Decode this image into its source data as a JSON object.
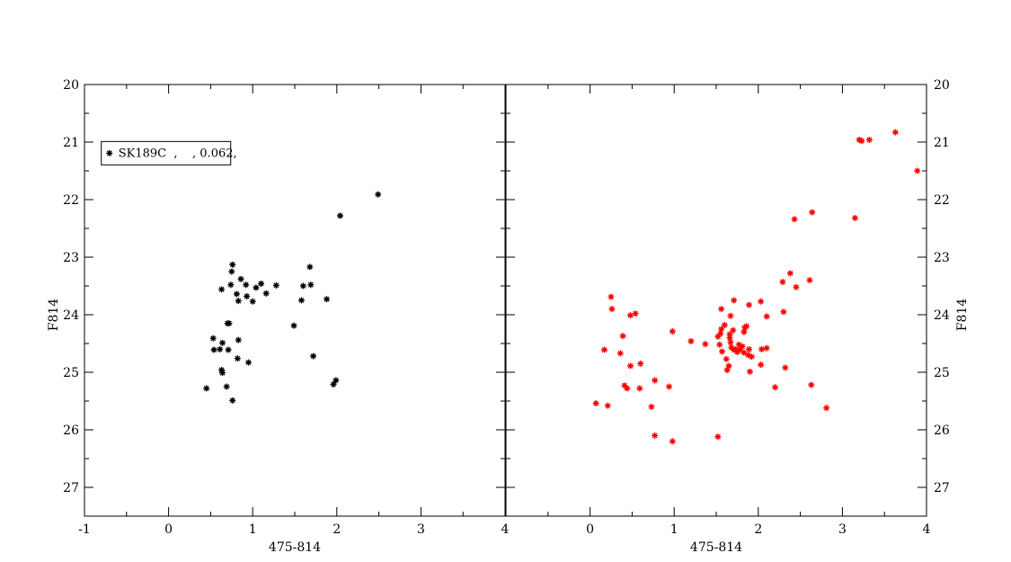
{
  "chart_data": [
    {
      "type": "scatter",
      "title": "",
      "xlabel": "475-814",
      "ylabel": "F814",
      "ylabel_side": "left",
      "xlim": [
        -1,
        4
      ],
      "ylim": [
        27.5,
        20
      ],
      "y_inverted": true,
      "x_ticks": [
        "-1",
        "0",
        "1",
        "2",
        "3",
        "4"
      ],
      "y_ticks": [
        "20",
        "21",
        "22",
        "23",
        "24",
        "25",
        "26",
        "27"
      ],
      "grid": false,
      "legend": {
        "text": "SK189C  ,    , 0.062,",
        "placement": "top-left"
      },
      "series": [
        {
          "name": "SK189C  ,    , 0.062,",
          "color": "#000000",
          "marker": "asterisk",
          "points": [
            [
              2.49,
              21.91
            ],
            [
              2.04,
              22.28
            ],
            [
              0.76,
              23.13
            ],
            [
              1.68,
              23.17
            ],
            [
              0.75,
              23.25
            ],
            [
              1.28,
              23.49
            ],
            [
              1.1,
              23.46
            ],
            [
              0.74,
              23.48
            ],
            [
              1.04,
              23.53
            ],
            [
              1.6,
              23.5
            ],
            [
              1.69,
              23.48
            ],
            [
              0.92,
              23.48
            ],
            [
              0.86,
              23.38
            ],
            [
              0.63,
              23.56
            ],
            [
              0.81,
              23.64
            ],
            [
              1.16,
              23.63
            ],
            [
              0.93,
              23.68
            ],
            [
              1.0,
              23.77
            ],
            [
              0.83,
              23.76
            ],
            [
              1.88,
              23.73
            ],
            [
              1.58,
              23.75
            ],
            [
              1.49,
              24.19
            ],
            [
              0.7,
              24.15
            ],
            [
              0.72,
              24.15
            ],
            [
              0.53,
              24.41
            ],
            [
              0.83,
              24.44
            ],
            [
              0.64,
              24.49
            ],
            [
              0.54,
              24.61
            ],
            [
              0.61,
              24.6
            ],
            [
              0.71,
              24.61
            ],
            [
              1.72,
              24.72
            ],
            [
              0.82,
              24.76
            ],
            [
              0.95,
              24.83
            ],
            [
              0.63,
              24.96
            ],
            [
              0.64,
              25.01
            ],
            [
              1.99,
              25.14
            ],
            [
              1.96,
              25.21
            ],
            [
              0.45,
              25.28
            ],
            [
              0.69,
              25.25
            ],
            [
              0.76,
              25.49
            ]
          ]
        }
      ]
    },
    {
      "type": "scatter",
      "title": "",
      "xlabel": "475-814",
      "ylabel": "F814",
      "ylabel_side": "right",
      "xlim": [
        -1,
        4
      ],
      "ylim": [
        27.5,
        20
      ],
      "y_inverted": true,
      "x_ticks": [
        "0",
        "1",
        "2",
        "3",
        "4"
      ],
      "y_ticks": [
        "20",
        "21",
        "22",
        "23",
        "24",
        "25",
        "26",
        "27"
      ],
      "grid": false,
      "series": [
        {
          "name": "",
          "color": "#ff0000",
          "marker": "asterisk",
          "points": [
            [
              3.63,
              20.83
            ],
            [
              3.2,
              20.96
            ],
            [
              3.23,
              20.98
            ],
            [
              3.32,
              20.96
            ],
            [
              3.89,
              21.5
            ],
            [
              2.64,
              22.22
            ],
            [
              2.43,
              22.34
            ],
            [
              3.15,
              22.32
            ],
            [
              2.38,
              23.28
            ],
            [
              2.29,
              23.43
            ],
            [
              2.45,
              23.52
            ],
            [
              2.61,
              23.4
            ],
            [
              0.25,
              23.69
            ],
            [
              1.71,
              23.75
            ],
            [
              2.03,
              23.77
            ],
            [
              1.89,
              23.83
            ],
            [
              1.56,
              23.9
            ],
            [
              0.26,
              23.9
            ],
            [
              2.3,
              23.95
            ],
            [
              0.54,
              23.98
            ],
            [
              0.48,
              24.01
            ],
            [
              1.67,
              24.02
            ],
            [
              2.1,
              24.03
            ],
            [
              1.6,
              24.18
            ],
            [
              1.84,
              24.22
            ],
            [
              1.86,
              24.2
            ],
            [
              1.56,
              24.25
            ],
            [
              1.7,
              24.27
            ],
            [
              0.98,
              24.29
            ],
            [
              1.55,
              24.33
            ],
            [
              1.83,
              24.3
            ],
            [
              1.66,
              24.34
            ],
            [
              1.66,
              24.4
            ],
            [
              0.39,
              24.37
            ],
            [
              1.52,
              24.38
            ],
            [
              1.2,
              24.46
            ],
            [
              1.67,
              24.48
            ],
            [
              1.37,
              24.51
            ],
            [
              1.54,
              24.52
            ],
            [
              1.77,
              24.52
            ],
            [
              1.81,
              24.55
            ],
            [
              1.68,
              24.57
            ],
            [
              1.73,
              24.6
            ],
            [
              2.1,
              24.58
            ],
            [
              1.89,
              24.6
            ],
            [
              1.71,
              24.61
            ],
            [
              1.78,
              24.61
            ],
            [
              1.57,
              24.64
            ],
            [
              1.75,
              24.65
            ],
            [
              2.04,
              24.6
            ],
            [
              1.83,
              24.66
            ],
            [
              1.88,
              24.7
            ],
            [
              1.92,
              24.73
            ],
            [
              0.17,
              24.61
            ],
            [
              0.36,
              24.67
            ],
            [
              1.62,
              24.77
            ],
            [
              2.03,
              24.87
            ],
            [
              0.6,
              24.85
            ],
            [
              0.48,
              24.89
            ],
            [
              1.65,
              24.89
            ],
            [
              2.32,
              24.92
            ],
            [
              1.63,
              24.96
            ],
            [
              1.9,
              24.99
            ],
            [
              0.77,
              25.14
            ],
            [
              0.94,
              25.25
            ],
            [
              0.59,
              25.28
            ],
            [
              0.41,
              25.23
            ],
            [
              0.44,
              25.28
            ],
            [
              2.2,
              25.26
            ],
            [
              2.63,
              25.22
            ],
            [
              0.07,
              25.54
            ],
            [
              0.21,
              25.58
            ],
            [
              0.73,
              25.6
            ],
            [
              2.81,
              25.62
            ],
            [
              0.77,
              26.1
            ],
            [
              1.52,
              26.12
            ],
            [
              0.98,
              26.2
            ]
          ]
        }
      ]
    }
  ]
}
